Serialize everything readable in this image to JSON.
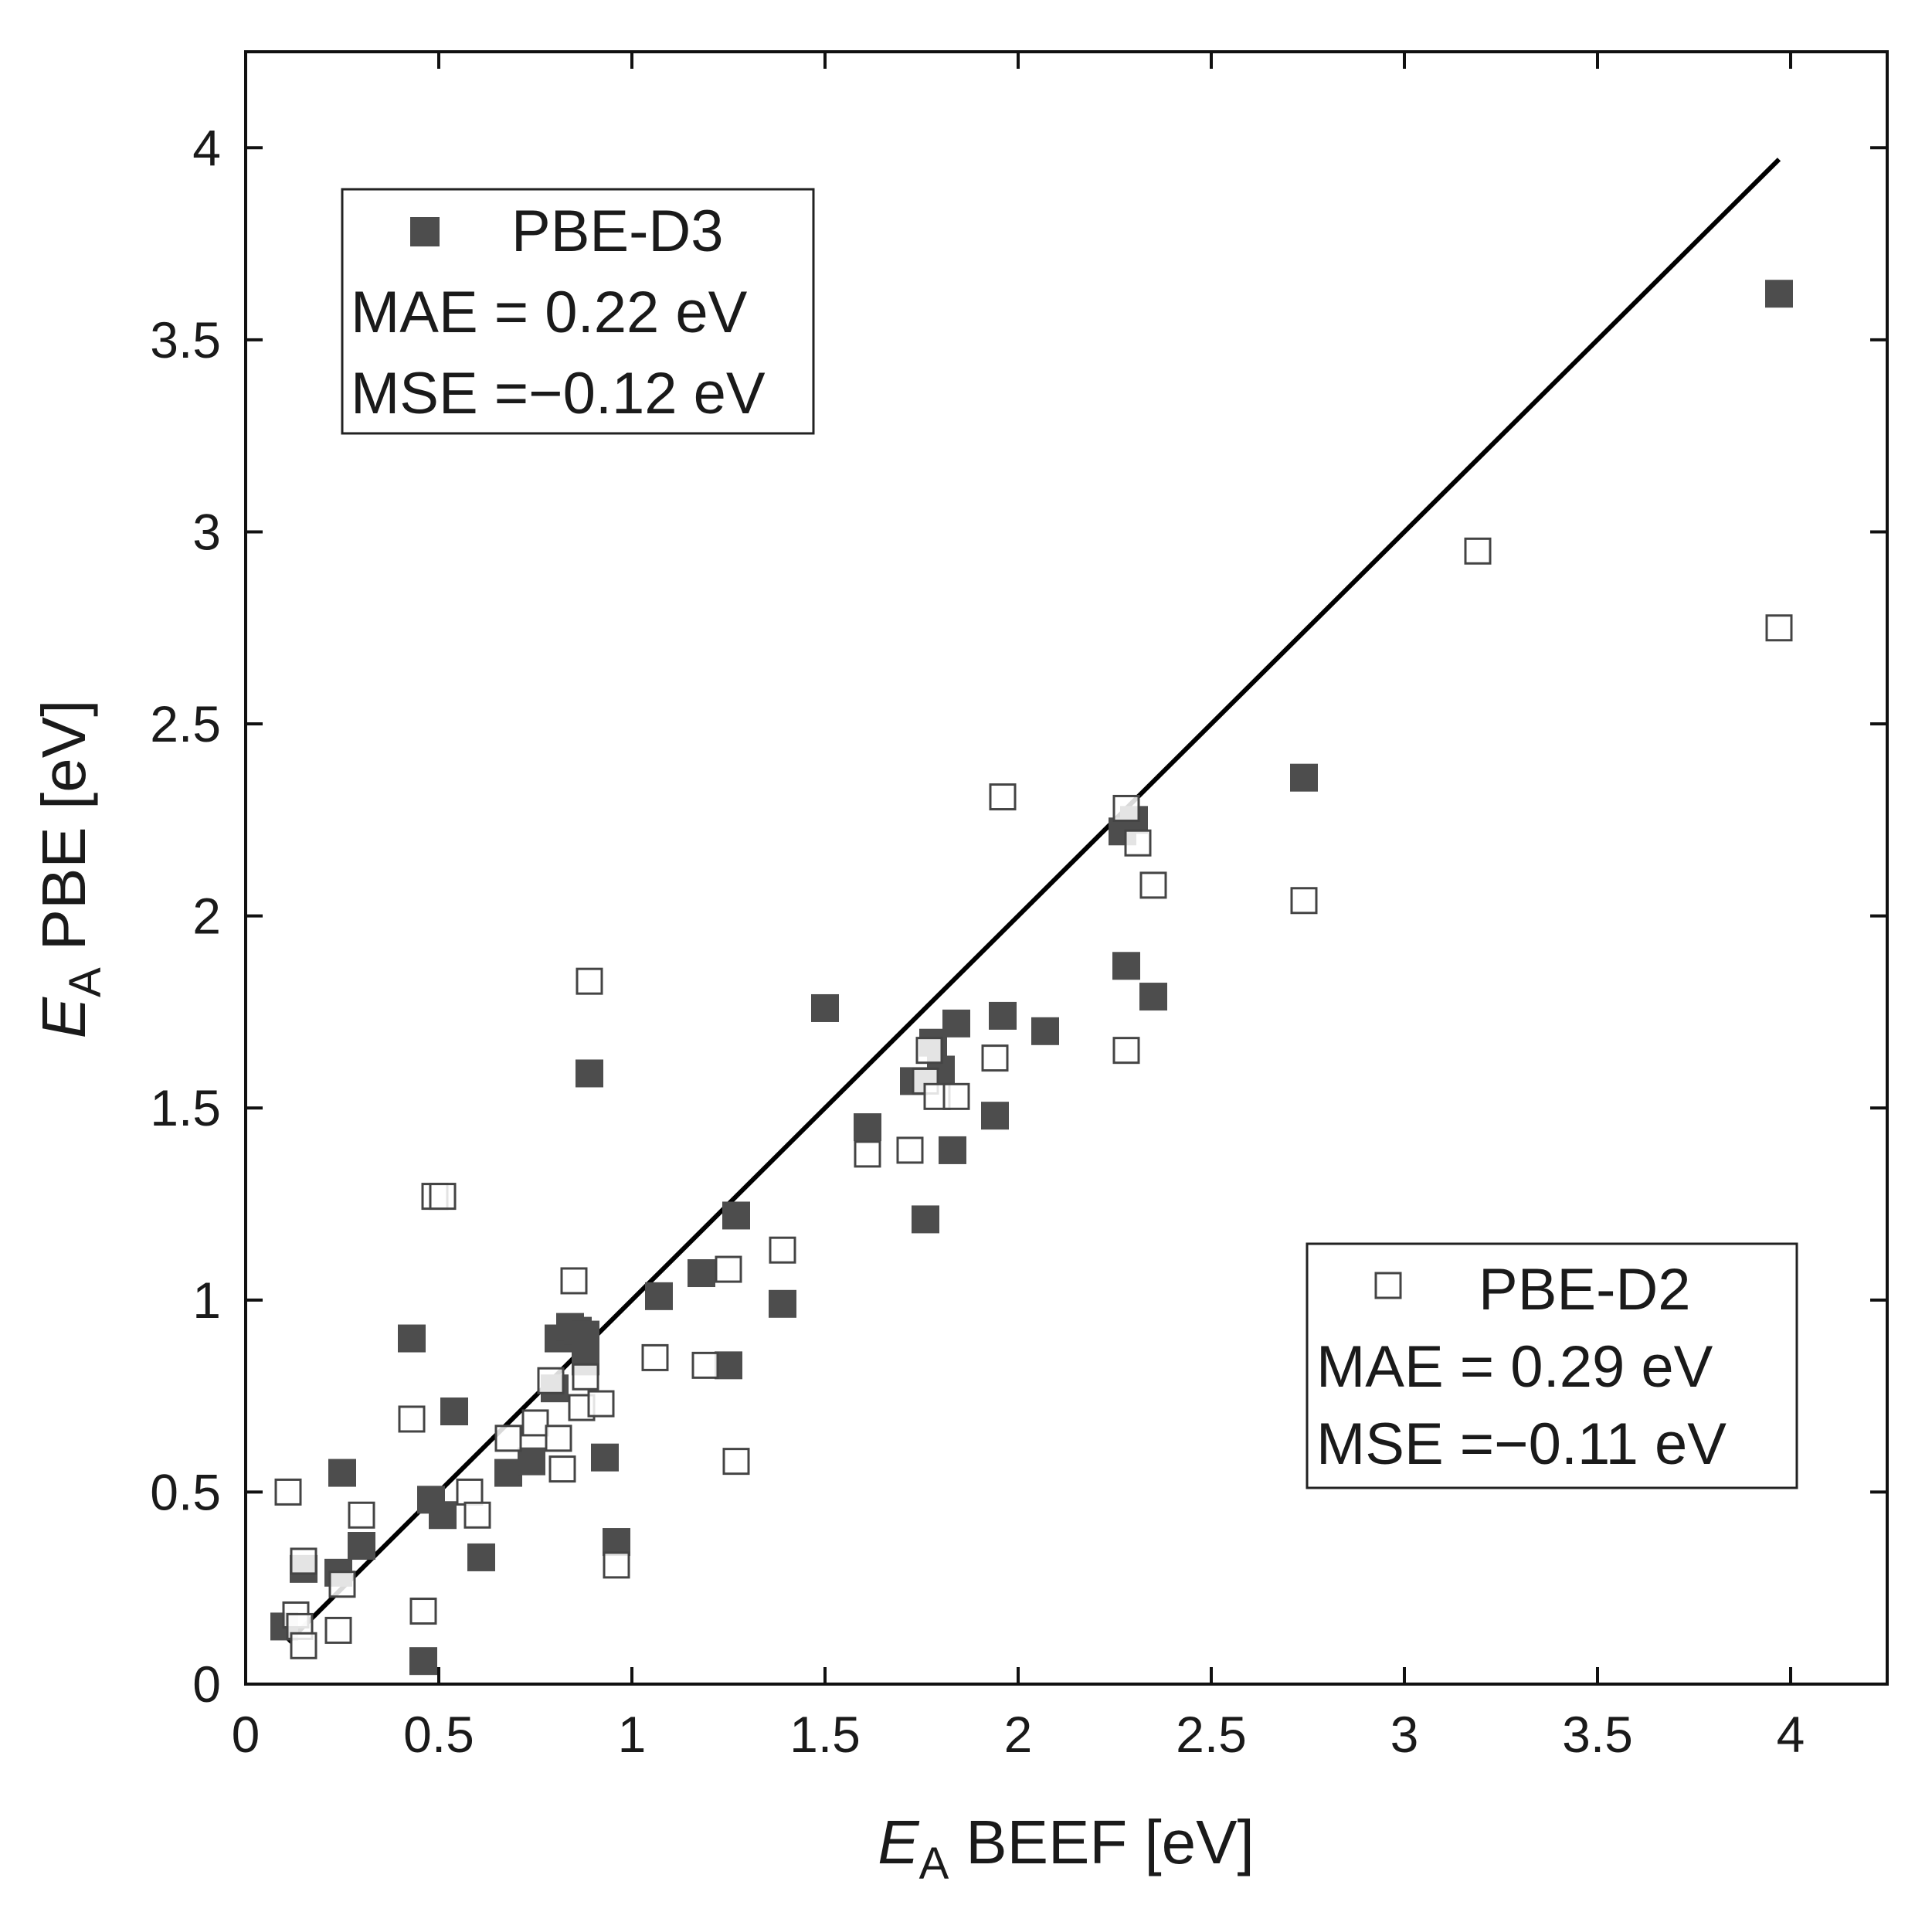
{
  "chart_data": {
    "type": "scatter",
    "xlabel": {
      "symbol": "E",
      "subscript": "A",
      "text": "BEEF [eV]"
    },
    "ylabel": {
      "symbol": "E",
      "subscript": "A",
      "text": "PBE [eV]"
    },
    "xlim": [
      0,
      4.25
    ],
    "ylim": [
      0,
      4.25
    ],
    "xticks": [
      "0",
      "0.5",
      "1",
      "1.5",
      "2",
      "2.5",
      "3",
      "3.5",
      "4"
    ],
    "yticks": [
      "0",
      "0.5",
      "1",
      "1.5",
      "2",
      "2.5",
      "3",
      "3.5",
      "4"
    ],
    "colors": {
      "filled": "#4d4d4d",
      "open_stroke": "#444444",
      "line": "#000000"
    },
    "parity_line": {
      "x": [
        0.11,
        3.97
      ],
      "y": [
        0.11,
        3.97
      ]
    },
    "series": [
      {
        "name": "PBE-D3",
        "marker": "filled-square",
        "legend": {
          "name": "PBE-D3",
          "mae": "MAE = 0.22 eV",
          "mse": "MSE =−0.12 eV"
        },
        "points": [
          [
            0.1,
            0.15
          ],
          [
            0.15,
            0.3
          ],
          [
            0.24,
            0.29
          ],
          [
            0.25,
            0.55
          ],
          [
            0.3,
            0.36
          ],
          [
            0.43,
            0.9
          ],
          [
            0.46,
            0.06
          ],
          [
            0.48,
            0.48
          ],
          [
            0.51,
            0.44
          ],
          [
            0.54,
            0.71
          ],
          [
            0.61,
            0.33
          ],
          [
            0.68,
            0.55
          ],
          [
            0.74,
            0.58
          ],
          [
            0.8,
            0.77
          ],
          [
            0.81,
            0.9
          ],
          [
            0.84,
            0.93
          ],
          [
            0.86,
            0.92
          ],
          [
            0.88,
            0.91
          ],
          [
            0.88,
            0.84
          ],
          [
            0.89,
            1.59
          ],
          [
            0.93,
            0.59
          ],
          [
            0.96,
            0.37
          ],
          [
            1.07,
            1.01
          ],
          [
            1.18,
            1.07
          ],
          [
            1.25,
            0.83
          ],
          [
            1.27,
            1.22
          ],
          [
            1.39,
            0.99
          ],
          [
            1.5,
            1.76
          ],
          [
            1.61,
            1.45
          ],
          [
            1.73,
            1.57
          ],
          [
            1.76,
            1.21
          ],
          [
            1.78,
            1.67
          ],
          [
            1.8,
            1.6
          ],
          [
            1.83,
            1.39
          ],
          [
            1.84,
            1.72
          ],
          [
            1.94,
            1.48
          ],
          [
            1.96,
            1.74
          ],
          [
            2.07,
            1.7
          ],
          [
            2.27,
            2.22
          ],
          [
            2.28,
            1.87
          ],
          [
            2.3,
            2.25
          ],
          [
            2.35,
            1.79
          ],
          [
            2.74,
            2.36
          ],
          [
            3.97,
            3.62
          ]
        ]
      },
      {
        "name": "PBE-D2",
        "marker": "open-square",
        "legend": {
          "name": "PBE-D2",
          "mae": "MAE = 0.29 eV",
          "mse": "MSE =−0.11 eV"
        },
        "points": [
          [
            0.11,
            0.5
          ],
          [
            0.13,
            0.18
          ],
          [
            0.14,
            0.15
          ],
          [
            0.15,
            0.1
          ],
          [
            0.15,
            0.32
          ],
          [
            0.24,
            0.14
          ],
          [
            0.25,
            0.26
          ],
          [
            0.3,
            0.44
          ],
          [
            0.43,
            0.69
          ],
          [
            0.46,
            0.19
          ],
          [
            0.49,
            1.27
          ],
          [
            0.51,
            1.27
          ],
          [
            0.58,
            0.5
          ],
          [
            0.6,
            0.44
          ],
          [
            0.68,
            0.64
          ],
          [
            0.75,
            0.68
          ],
          [
            0.79,
            0.79
          ],
          [
            0.81,
            0.64
          ],
          [
            0.82,
            0.56
          ],
          [
            0.85,
            1.05
          ],
          [
            0.87,
            0.72
          ],
          [
            0.88,
            0.8
          ],
          [
            0.89,
            1.83
          ],
          [
            0.92,
            0.73
          ],
          [
            0.96,
            0.31
          ],
          [
            1.06,
            0.85
          ],
          [
            1.19,
            0.83
          ],
          [
            1.25,
            1.08
          ],
          [
            1.27,
            0.58
          ],
          [
            1.39,
            1.13
          ],
          [
            1.61,
            1.38
          ],
          [
            1.72,
            1.39
          ],
          [
            1.76,
            1.57
          ],
          [
            1.77,
            1.65
          ],
          [
            1.79,
            1.53
          ],
          [
            1.84,
            1.53
          ],
          [
            1.94,
            1.63
          ],
          [
            1.96,
            2.31
          ],
          [
            2.28,
            1.65
          ],
          [
            2.28,
            2.28
          ],
          [
            2.31,
            2.19
          ],
          [
            2.35,
            2.08
          ],
          [
            2.74,
            2.04
          ],
          [
            3.19,
            2.95
          ],
          [
            3.97,
            2.75
          ]
        ]
      }
    ]
  }
}
